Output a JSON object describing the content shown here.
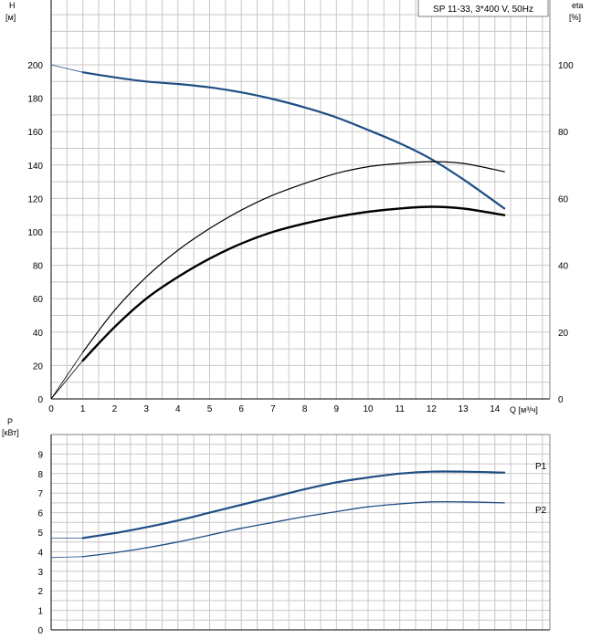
{
  "colors": {
    "head_curve": "#1f4e85",
    "eta_curves": "#000000",
    "power_curves": "#1f4e85",
    "power_label": "#3a6ea5",
    "grid": "#c8c8c8"
  },
  "chart_data": [
    {
      "type": "line",
      "title": "SP 11-33, 3*400 V, 50Hz",
      "xlabel": "Q [м³/ч]",
      "ylabel": "H",
      "ylabel_unit": "[м]",
      "y2label": "eta",
      "y2label_unit": "[%]",
      "xlim": [
        0,
        14.5
      ],
      "ylim": [
        0,
        200
      ],
      "y2lim": [
        0,
        100
      ],
      "x_ticks": [
        0,
        1,
        2,
        3,
        4,
        5,
        6,
        7,
        8,
        9,
        10,
        11,
        12,
        13,
        14
      ],
      "y_ticks": [
        0,
        20,
        40,
        60,
        80,
        100,
        120,
        140,
        160,
        180,
        200
      ],
      "y2_ticks": [
        0,
        20,
        40,
        60,
        80,
        100
      ],
      "grid": true,
      "series": [
        {
          "role": "head",
          "x": [
            0,
            1,
            2,
            3,
            4,
            5,
            6,
            7,
            8,
            9,
            10,
            11,
            12,
            13,
            14.3
          ],
          "y": [
            200,
            195.5,
            192.5,
            190,
            188.5,
            186.5,
            183.5,
            179.5,
            174.5,
            168.5,
            161,
            153,
            143.5,
            131.5,
            114
          ]
        },
        {
          "role": "eta-upper",
          "x": [
            0,
            1,
            2,
            3,
            4,
            5,
            6,
            7,
            8,
            9,
            10,
            11,
            12,
            13,
            14.3
          ],
          "y": [
            0,
            14,
            26.5,
            36.5,
            44.5,
            51,
            56.5,
            61,
            64.5,
            67.5,
            69.5,
            70.5,
            71,
            70.5,
            68
          ]
        },
        {
          "role": "eta-lower",
          "x": [
            0,
            1,
            2,
            3,
            4,
            5,
            6,
            7,
            8,
            9,
            10,
            11,
            12,
            13,
            14.3
          ],
          "y": [
            0,
            11.5,
            21.5,
            30,
            36.5,
            42,
            46.5,
            50,
            52.5,
            54.5,
            56,
            57,
            57.5,
            57,
            55
          ]
        }
      ]
    },
    {
      "type": "line",
      "ylabel": "P",
      "ylabel_unit": "[кВт]",
      "xlim": [
        0,
        14.5
      ],
      "ylim": [
        0,
        10
      ],
      "y_ticks": [
        0,
        1,
        2,
        3,
        4,
        5,
        6,
        7,
        8,
        9
      ],
      "grid": true,
      "series": [
        {
          "name": "P1",
          "x": [
            0,
            1,
            2,
            3,
            4,
            5,
            6,
            7,
            8,
            9,
            10,
            11,
            12,
            13,
            14.3
          ],
          "y": [
            4.7,
            4.7,
            4.95,
            5.25,
            5.6,
            6.0,
            6.4,
            6.8,
            7.2,
            7.55,
            7.8,
            8.0,
            8.1,
            8.1,
            8.05
          ]
        },
        {
          "name": "P2",
          "x": [
            0,
            1,
            2,
            3,
            4,
            5,
            6,
            7,
            8,
            9,
            10,
            11,
            12,
            13,
            14.3
          ],
          "y": [
            3.7,
            3.75,
            3.95,
            4.2,
            4.5,
            4.85,
            5.2,
            5.5,
            5.8,
            6.05,
            6.3,
            6.45,
            6.55,
            6.55,
            6.5
          ]
        }
      ]
    }
  ]
}
